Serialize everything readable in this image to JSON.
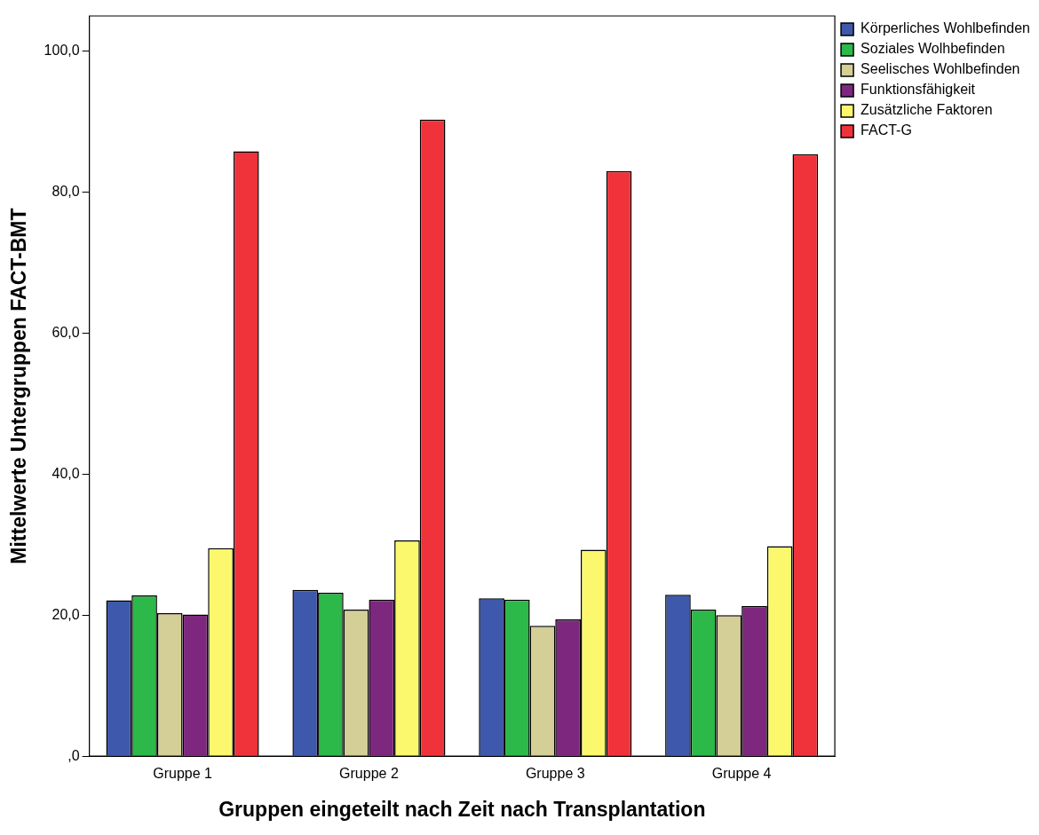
{
  "chart_data": {
    "type": "bar",
    "xlabel": "Gruppen eingeteilt nach Zeit nach Transplantation",
    "ylabel": "Mittelwerte Untergruppen FACT-BMT",
    "categories": [
      "Gruppe 1",
      "Gruppe 2",
      "Gruppe 3",
      "Gruppe 4"
    ],
    "series": [
      {
        "name": "Körperliches Wohlbefinden",
        "color": "#3e58ac",
        "values": [
          22.1,
          23.6,
          22.4,
          22.9
        ]
      },
      {
        "name": "Soziales Wolhbefinden",
        "color": "#2db84a",
        "values": [
          22.8,
          23.2,
          22.2,
          20.8
        ]
      },
      {
        "name": "Seelisches Wohlbefinden",
        "color": "#d4ce97",
        "values": [
          20.3,
          20.8,
          18.5,
          20.0
        ]
      },
      {
        "name": "Funktionsfähigkeit",
        "color": "#7d287e",
        "values": [
          20.1,
          22.2,
          19.4,
          21.3
        ]
      },
      {
        "name": "Zusätzliche Faktoren",
        "color": "#fbf86e",
        "values": [
          29.5,
          30.6,
          29.3,
          29.8
        ]
      },
      {
        "name": "FACT-G",
        "color": "#f0333a",
        "values": [
          85.8,
          90.3,
          83.0,
          85.4
        ]
      }
    ],
    "ylim": [
      0,
      105
    ],
    "yticks": [
      {
        "value": 0,
        "label": ",0"
      },
      {
        "value": 20,
        "label": "20,0"
      },
      {
        "value": 40,
        "label": "40,0"
      },
      {
        "value": 60,
        "label": "60,0"
      },
      {
        "value": 80,
        "label": "80,0"
      },
      {
        "value": 100,
        "label": "100,0"
      }
    ],
    "grid": false,
    "legend": "top right"
  }
}
